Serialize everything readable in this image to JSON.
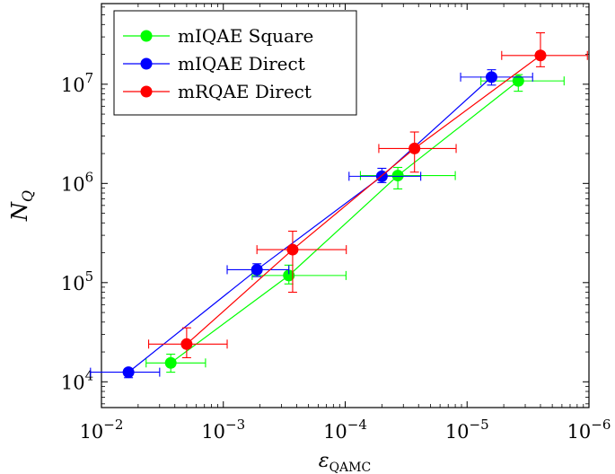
{
  "chart_data": {
    "type": "scatter",
    "xlabel": "ε",
    "xlabel_sub": "QAMC",
    "ylabel": "N",
    "ylabel_sub": "Q",
    "xscale": "log-reversed",
    "yscale": "log",
    "xlim": [
      0.01,
      1e-06
    ],
    "ylim": [
      5500,
      65000000
    ],
    "x_ticks": [
      {
        "base": "10",
        "exp": "−2",
        "value": 0.01
      },
      {
        "base": "10",
        "exp": "−3",
        "value": 0.001
      },
      {
        "base": "10",
        "exp": "−4",
        "value": 0.0001
      },
      {
        "base": "10",
        "exp": "−5",
        "value": 1e-05
      },
      {
        "base": "10",
        "exp": "−6",
        "value": 1e-06
      }
    ],
    "y_ticks": [
      {
        "base": "10",
        "exp": "4",
        "value": 10000
      },
      {
        "base": "10",
        "exp": "5",
        "value": 100000
      },
      {
        "base": "10",
        "exp": "6",
        "value": 1000000
      },
      {
        "base": "10",
        "exp": "7",
        "value": 10000000
      }
    ],
    "legend_position": "top-left",
    "series": [
      {
        "name": "mIQAE Square",
        "color": "#00ff00",
        "points": [
          {
            "x": 0.0027,
            "y": 15500,
            "xerr": [
              0.0043,
              0.0014
            ],
            "yerr": [
              12500,
              19000
            ]
          },
          {
            "x": 0.00029,
            "y": 118000,
            "xerr": [
              0.00058,
              9.85e-05
            ],
            "yerr": [
              97000,
              150000
            ]
          },
          {
            "x": 3.7e-05,
            "y": 1200000,
            "xerr": [
              7.5e-05,
              1.25e-05
            ],
            "yerr": [
              880000,
              1450000
            ]
          },
          {
            "x": 3.8e-06,
            "y": 10800000,
            "xerr": [
              7.7e-06,
              1.6e-06
            ],
            "yerr": [
              8500000,
              12500000
            ]
          }
        ]
      },
      {
        "name": "mIQAE Direct",
        "color": "#0000ff",
        "points": [
          {
            "x": 0.006,
            "y": 12500,
            "xerr": [
              0.0123,
              0.00333
            ],
            "yerr": [
              11000,
              13500
            ]
          },
          {
            "x": 0.00053,
            "y": 135000,
            "xerr": [
              0.00093,
              0.00029
            ],
            "yerr": [
              115000,
              155000
            ]
          },
          {
            "x": 5e-05,
            "y": 1180000,
            "xerr": [
              9.3e-05,
              2.4e-05
            ],
            "yerr": [
              1020000,
              1420000
            ]
          },
          {
            "x": 6.3e-06,
            "y": 11800000,
            "xerr": [
              1.13e-05,
              2.9e-06
            ],
            "yerr": [
              9800000,
              14000000
            ]
          }
        ]
      },
      {
        "name": "mRQAE Direct",
        "color": "#ff0000",
        "points": [
          {
            "x": 0.002,
            "y": 24000,
            "xerr": [
              0.0041,
              0.00093
            ],
            "yerr": [
              17500,
              35000
            ]
          },
          {
            "x": 0.00027,
            "y": 215000,
            "xerr": [
              0.00053,
              9.8e-05
            ],
            "yerr": [
              80000,
              330000
            ]
          },
          {
            "x": 2.7e-05,
            "y": 2250000,
            "xerr": [
              5.3e-05,
              1.23e-05
            ],
            "yerr": [
              1300000,
              3300000
            ]
          },
          {
            "x": 2.5e-06,
            "y": 19500000,
            "xerr": [
              5.2e-06,
              1.03e-06
            ],
            "yerr": [
              15000000,
              33000000
            ]
          }
        ]
      }
    ]
  }
}
